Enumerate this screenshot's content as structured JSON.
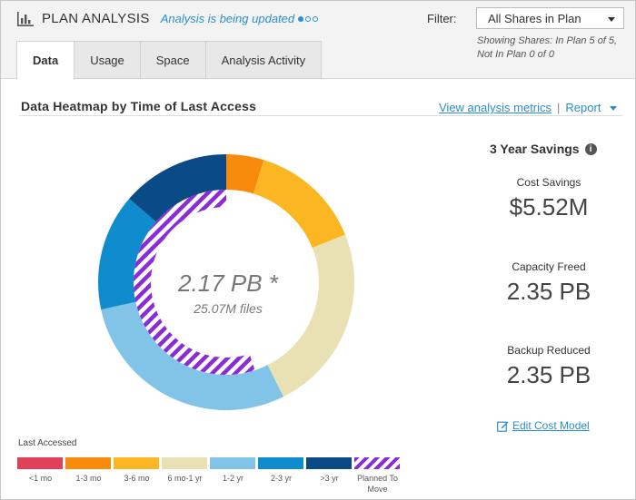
{
  "header": {
    "title": "PLAN ANALYSIS",
    "status": "Analysis is being updated",
    "filter_label": "Filter:",
    "filter_value": "All Shares in Plan",
    "filter_note_line1": "Showing Shares: In Plan 5 of 5,",
    "filter_note_line2": "Not In Plan 0 of 0"
  },
  "tabs": [
    {
      "label": "Data",
      "active": true
    },
    {
      "label": "Usage",
      "active": false
    },
    {
      "label": "Space",
      "active": false
    },
    {
      "label": "Analysis Activity",
      "active": false
    }
  ],
  "section": {
    "title": "Data Heatmap by Time of Last Access",
    "link_metrics": "View analysis metrics",
    "separator": "|",
    "link_report": "Report"
  },
  "chart": {
    "center_value": "2.17 PB *",
    "center_sub": "25.07M files"
  },
  "chart_data": {
    "type": "pie",
    "categories": [
      "<1 mo",
      "1-3 mo",
      "3-6 mo",
      "6 mo-1 yr",
      "1-2 yr",
      "2-3 yr",
      ">3 yr"
    ],
    "values": [
      0,
      4.5,
      13.5,
      22.5,
      27.5,
      14,
      13
    ],
    "planned_to_move_percent": 55,
    "colors": [
      "#e0405a",
      "#f88b0b",
      "#fcb621",
      "#e9e1b3",
      "#82c4e8",
      "#0f8ccd",
      "#0a4a87"
    ],
    "hatch_color": "#8a2bd6"
  },
  "savings": {
    "title": "3 Year Savings",
    "items": [
      {
        "label": "Cost Savings",
        "value": "$5.52M"
      },
      {
        "label": "Capacity Freed",
        "value": "2.35 PB"
      },
      {
        "label": "Backup Reduced",
        "value": "2.35 PB"
      }
    ],
    "edit_link": "Edit Cost Model"
  },
  "legend": {
    "title": "Last Accessed",
    "items": [
      {
        "label": "<1 mo",
        "color": "#e0405a"
      },
      {
        "label": "1-3 mo",
        "color": "#f88b0b"
      },
      {
        "label": "3-6 mo",
        "color": "#fcb621"
      },
      {
        "label": "6 mo-1 yr",
        "color": "#e9e1b3"
      },
      {
        "label": "1-2 yr",
        "color": "#82c4e8"
      },
      {
        "label": "2-3 yr",
        "color": "#0f8ccd"
      },
      {
        "label": ">3 yr",
        "color": "#0a4a87"
      },
      {
        "label": "Planned To Move",
        "color": "hatch"
      }
    ]
  },
  "icons": {
    "title_icon": "bar-chart-icon",
    "info_icon": "info-icon",
    "edit_icon": "edit-icon"
  }
}
